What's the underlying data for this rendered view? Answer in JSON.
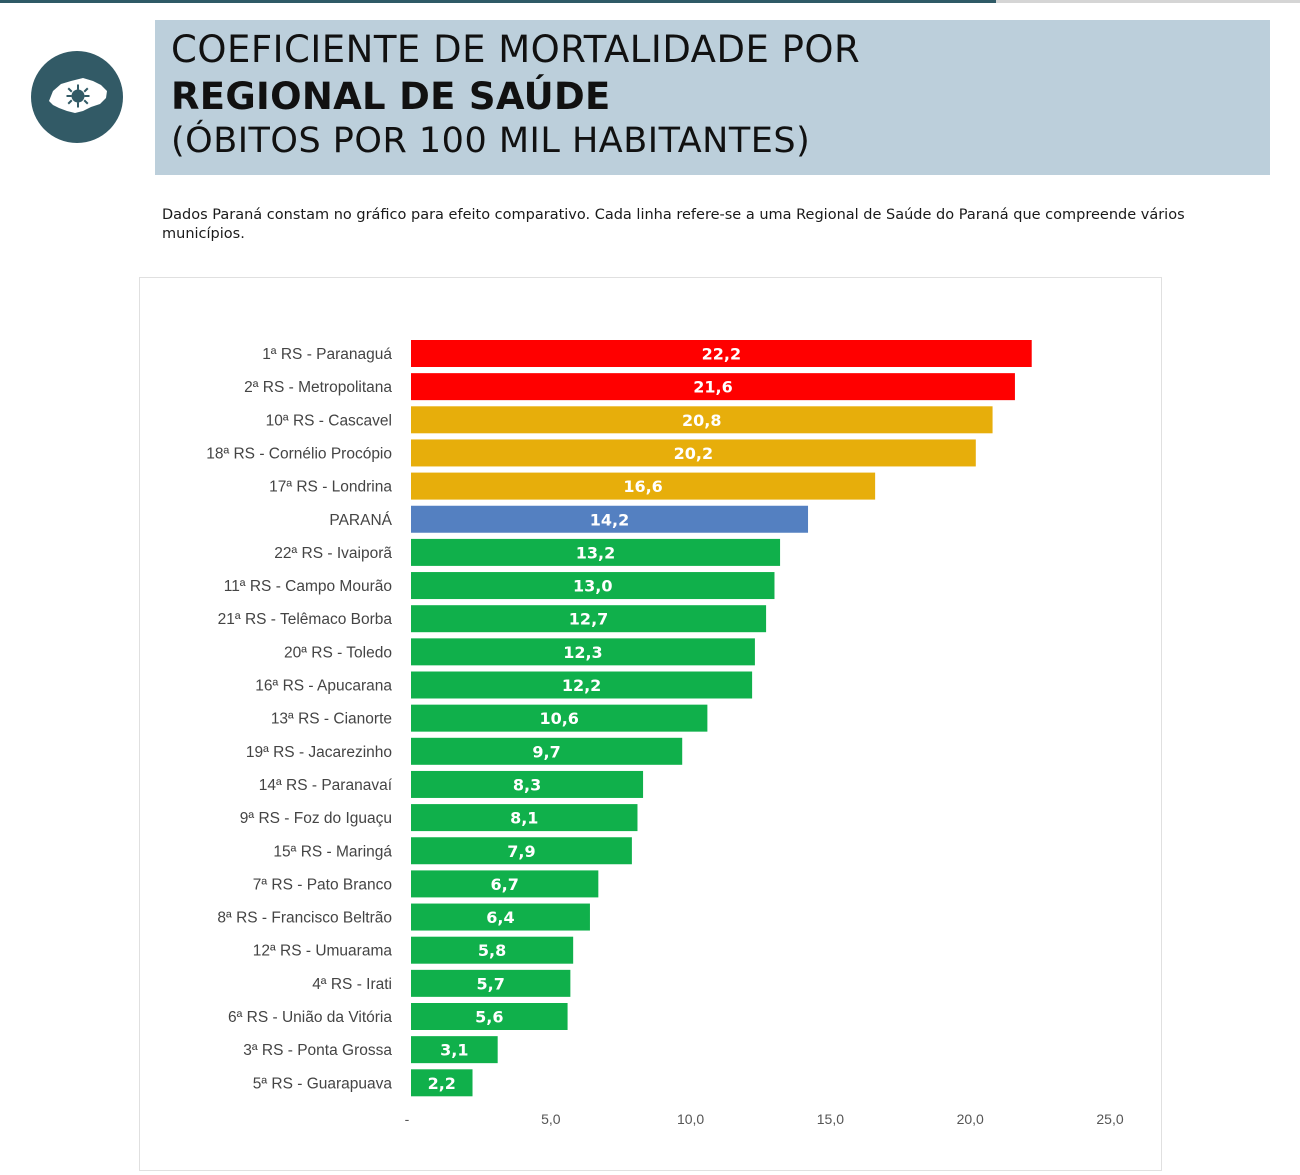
{
  "header": {
    "title_line1": "COEFICIENTE DE MORTALIDADE POR",
    "title_line2": "REGIONAL DE SAÚDE",
    "title_line3": "(ÓBITOS POR 100 MIL HABITANTES)"
  },
  "note": "Dados Paraná constam no gráfico para efeito comparativo. Cada linha refere-se a uma Regional de Saúde do Paraná que compreende vários municípios.",
  "logo": {
    "icon": "parana-map-virus-icon"
  },
  "colors": {
    "red": "#ff0000",
    "amber": "#e7ae0b",
    "blue": "#5480c1",
    "green": "#10b04b",
    "accent_dark": "#325a66",
    "header_bg": "#bccfdb"
  },
  "chart_data": {
    "type": "bar",
    "orientation": "horizontal",
    "categories": [
      "1ª RS - Paranaguá",
      "2ª RS - Metropolitana",
      "10ª RS - Cascavel",
      "18ª RS - Cornélio Procópio",
      "17ª RS - Londrina",
      "PARANÁ",
      "22ª RS - Ivaiporã",
      "11ª RS - Campo Mourão",
      "21ª RS - Telêmaco Borba",
      "20ª RS - Toledo",
      "16ª RS - Apucarana",
      "13ª RS - Cianorte",
      "19ª RS - Jacarezinho",
      "14ª RS - Paranavaí",
      "9ª RS - Foz do Iguaçu",
      "15ª RS - Maringá",
      "7ª RS - Pato Branco",
      "8ª RS - Francisco Beltrão",
      "12ª RS - Umuarama",
      "4ª RS - Irati",
      "6ª RS - União da Vitória",
      "3ª RS - Ponta Grossa",
      "5ª RS - Guarapuava"
    ],
    "values": [
      22.2,
      21.6,
      20.8,
      20.2,
      16.6,
      14.2,
      13.2,
      13.0,
      12.7,
      12.3,
      12.2,
      10.6,
      9.7,
      8.3,
      8.1,
      7.9,
      6.7,
      6.4,
      5.8,
      5.7,
      5.6,
      3.1,
      2.2
    ],
    "value_labels": [
      "22,2",
      "21,6",
      "20,8",
      "20,2",
      "16,6",
      "14,2",
      "13,2",
      "13,0",
      "12,7",
      "12,3",
      "12,2",
      "10,6",
      "9,7",
      "8,3",
      "8,1",
      "7,9",
      "6,7",
      "6,4",
      "5,8",
      "5,7",
      "5,6",
      "3,1",
      "2,2"
    ],
    "bar_colors": [
      "red",
      "red",
      "amber",
      "amber",
      "amber",
      "blue",
      "green",
      "green",
      "green",
      "green",
      "green",
      "green",
      "green",
      "green",
      "green",
      "green",
      "green",
      "green",
      "green",
      "green",
      "green",
      "green",
      "green"
    ],
    "xlim": [
      0,
      25
    ],
    "ticks": [
      0,
      5,
      10,
      15,
      20,
      25
    ],
    "tick_labels": [
      "-",
      "5,0",
      "10,0",
      "15,0",
      "20,0",
      "25,0"
    ],
    "grid": false,
    "legend": "none"
  }
}
